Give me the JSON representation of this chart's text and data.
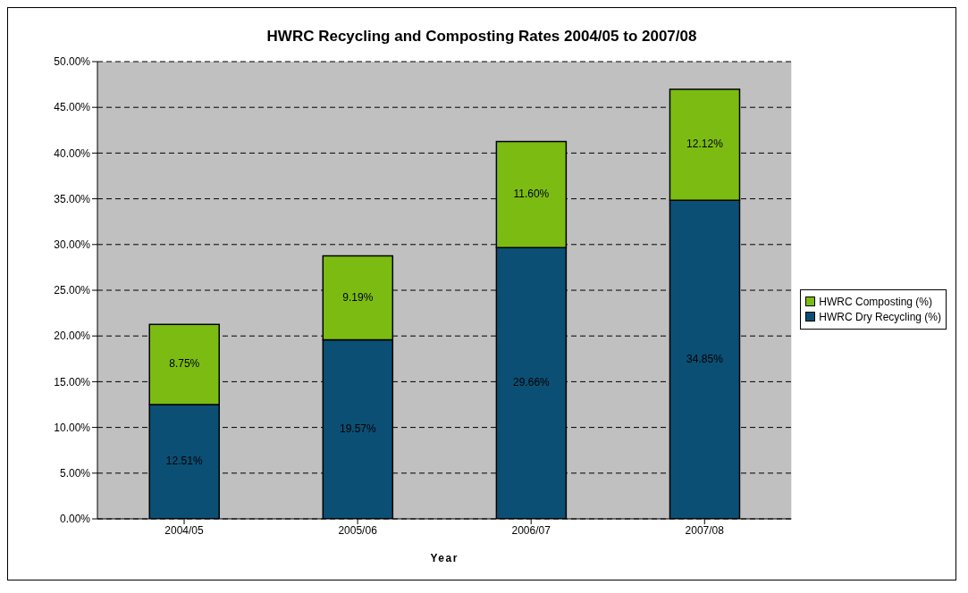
{
  "chart_data": {
    "type": "bar",
    "title": "HWRC Recycling and Composting Rates 2004/05 to 2007/08",
    "xlabel": "Year",
    "categories": [
      "2004/05",
      "2005/06",
      "2006/07",
      "2007/08"
    ],
    "stacked": true,
    "series": [
      {
        "name": "HWRC Dry Recycling (%)",
        "color": "#0b4f74",
        "values": [
          12.51,
          19.57,
          29.66,
          34.85
        ],
        "value_labels": [
          "12.51%",
          "19.57%",
          "29.66%",
          "34.85%"
        ]
      },
      {
        "name": "HWRC Composting (%)",
        "color": "#7cbc12",
        "values": [
          8.75,
          9.19,
          11.6,
          12.12
        ],
        "value_labels": [
          "8.75%",
          "9.19%",
          "11.60%",
          "12.12%"
        ]
      }
    ],
    "ylim": [
      0,
      50
    ],
    "yticks": [
      {
        "value": 0,
        "label": "0.00%"
      },
      {
        "value": 5,
        "label": "5.00%"
      },
      {
        "value": 10,
        "label": "10.00%"
      },
      {
        "value": 15,
        "label": "15.00%"
      },
      {
        "value": 20,
        "label": "20.00%"
      },
      {
        "value": 25,
        "label": "25.00%"
      },
      {
        "value": 30,
        "label": "30.00%"
      },
      {
        "value": 35,
        "label": "35.00%"
      },
      {
        "value": 40,
        "label": "40.00%"
      },
      {
        "value": 45,
        "label": "45.00%"
      },
      {
        "value": 50,
        "label": "50.00%"
      }
    ],
    "grid": "y",
    "legend": "right"
  }
}
